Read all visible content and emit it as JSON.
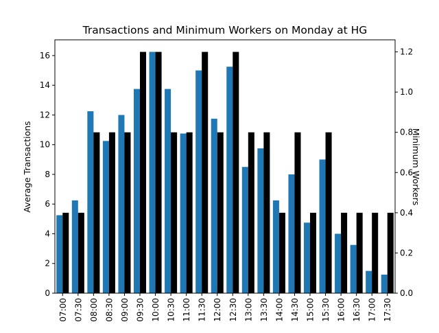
{
  "chart_data": {
    "type": "bar",
    "title": "Transactions and Minimum Workers on Monday at HG",
    "xlabel": "",
    "ylabel": "Average Transactions",
    "y2label": "Minimum Workers",
    "categories": [
      "07:00",
      "07:30",
      "08:00",
      "08:30",
      "09:00",
      "09:30",
      "10:00",
      "10:30",
      "11:00",
      "11:30",
      "12:00",
      "12:30",
      "13:00",
      "13:30",
      "14:00",
      "14:30",
      "15:00",
      "15:30",
      "16:00",
      "16:30",
      "17:00",
      "17:30"
    ],
    "series": [
      {
        "axis": "left",
        "color": "#1f77b4",
        "values": [
          5.25,
          6.25,
          12.25,
          10.25,
          12.0,
          13.75,
          16.25,
          13.75,
          10.75,
          15.0,
          11.75,
          15.25,
          8.5,
          9.75,
          6.25,
          8.0,
          4.75,
          9.0,
          4.0,
          3.25,
          1.5,
          1.25
        ]
      },
      {
        "axis": "right",
        "color": "#000000",
        "values": [
          0.4,
          0.4,
          0.8,
          0.8,
          0.8,
          1.2,
          1.2,
          0.8,
          0.8,
          1.2,
          0.8,
          1.2,
          0.8,
          0.8,
          0.4,
          0.8,
          0.4,
          0.8,
          0.4,
          0.4,
          0.4,
          0.4
        ]
      }
    ],
    "ylim": [
      0,
      17.06
    ],
    "y2lim": [
      0,
      1.26
    ],
    "yticks": [
      0,
      2,
      4,
      6,
      8,
      10,
      12,
      14,
      16
    ],
    "y2ticks": [
      0.0,
      0.2,
      0.4,
      0.6,
      0.8,
      1.0,
      1.2
    ],
    "ytick_labels": [
      "0",
      "2",
      "4",
      "6",
      "8",
      "10",
      "12",
      "14",
      "16"
    ],
    "y2tick_labels": [
      "0.0",
      "0.2",
      "0.4",
      "0.6",
      "0.8",
      "1.0",
      "1.2"
    ],
    "grid": false,
    "legend": "none"
  }
}
